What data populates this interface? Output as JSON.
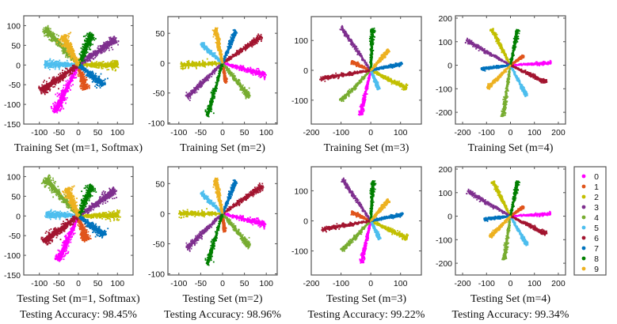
{
  "legend": {
    "entries": [
      {
        "label": "0",
        "color": "#ff00ff"
      },
      {
        "label": "1",
        "color": "#e0541b"
      },
      {
        "label": "2",
        "color": "#c2bf00"
      },
      {
        "label": "3",
        "color": "#7e2f8e"
      },
      {
        "label": "4",
        "color": "#77ac30"
      },
      {
        "label": "5",
        "color": "#4dbeee"
      },
      {
        "label": "6",
        "color": "#a2142f"
      },
      {
        "label": "7",
        "color": "#0072bd"
      },
      {
        "label": "8",
        "color": "#007f00"
      },
      {
        "label": "9",
        "color": "#edb120"
      }
    ]
  },
  "chart_data": [
    {
      "type": "scatter",
      "title": "Training Set (m=1, Softmax)",
      "accuracy_label": "",
      "xlim": [
        -140,
        140
      ],
      "ylim": [
        -150,
        125
      ],
      "xticks": [
        -100,
        -50,
        0,
        50,
        100
      ],
      "yticks": [
        -150,
        -100,
        -50,
        0,
        50,
        100
      ],
      "xtick_labels": [
        "-100",
        "-50",
        "0",
        "50",
        "100"
      ],
      "ytick_labels": [
        "-150",
        "-100",
        "-50",
        "0",
        "50",
        "100"
      ],
      "series": [
        {
          "name": "0",
          "tip": [
            -60,
            -120
          ],
          "spread": 12
        },
        {
          "name": "1",
          "tip": [
            18,
            -62
          ],
          "spread": 9
        },
        {
          "name": "2",
          "tip": [
            102,
            0
          ],
          "spread": 10
        },
        {
          "name": "3",
          "tip": [
            97,
            66
          ],
          "spread": 12
        },
        {
          "name": "4",
          "tip": [
            -86,
            94
          ],
          "spread": 12
        },
        {
          "name": "5",
          "tip": [
            -88,
            2
          ],
          "spread": 10
        },
        {
          "name": "6",
          "tip": [
            -97,
            -66
          ],
          "spread": 13
        },
        {
          "name": "7",
          "tip": [
            66,
            -52
          ],
          "spread": 10
        },
        {
          "name": "8",
          "tip": [
            35,
            80
          ],
          "spread": 11
        },
        {
          "name": "9",
          "tip": [
            -40,
            74
          ],
          "spread": 13
        }
      ]
    },
    {
      "type": "scatter",
      "title": "Training Set (m=2)",
      "accuracy_label": "",
      "xlim": [
        -125,
        125
      ],
      "ylim": [
        -102,
        78
      ],
      "xticks": [
        -100,
        -50,
        0,
        50,
        100
      ],
      "yticks": [
        -100,
        -50,
        0,
        50
      ],
      "xtick_labels": [
        "-100",
        "-50",
        "0",
        "50",
        "100"
      ],
      "ytick_labels": [
        "-100",
        "-50",
        "0",
        "50"
      ],
      "series": [
        {
          "name": "0",
          "tip": [
            98,
            -20
          ],
          "spread": 5
        },
        {
          "name": "1",
          "tip": [
            8,
            -33
          ],
          "spread": 3
        },
        {
          "name": "2",
          "tip": [
            -96,
            -3
          ],
          "spread": 5
        },
        {
          "name": "3",
          "tip": [
            -82,
            -58
          ],
          "spread": 5
        },
        {
          "name": "4",
          "tip": [
            62,
            -57
          ],
          "spread": 5
        },
        {
          "name": "5",
          "tip": [
            -50,
            33
          ],
          "spread": 4
        },
        {
          "name": "6",
          "tip": [
            90,
            45
          ],
          "spread": 5
        },
        {
          "name": "7",
          "tip": [
            30,
            54
          ],
          "spread": 4
        },
        {
          "name": "8",
          "tip": [
            -35,
            -88
          ],
          "spread": 5
        },
        {
          "name": "9",
          "tip": [
            -17,
            58
          ],
          "spread": 5
        }
      ]
    },
    {
      "type": "scatter",
      "title": "Training Set (m=3)",
      "accuracy_label": "",
      "xlim": [
        -200,
        170
      ],
      "ylim": [
        -180,
        180
      ],
      "xticks": [
        -200,
        -100,
        0,
        100
      ],
      "yticks": [
        -100,
        0,
        100
      ],
      "xtick_labels": [
        "-200",
        "-100",
        "0",
        "100"
      ],
      "ytick_labels": [
        "-100",
        "0",
        "100"
      ],
      "series": [
        {
          "name": "0",
          "tip": [
            -35,
            -150
          ],
          "spread": 6
        },
        {
          "name": "1",
          "tip": [
            -65,
            28
          ],
          "spread": 5
        },
        {
          "name": "2",
          "tip": [
            120,
            -60
          ],
          "spread": 8
        },
        {
          "name": "3",
          "tip": [
            -100,
            145
          ],
          "spread": 6
        },
        {
          "name": "4",
          "tip": [
            -100,
            -103
          ],
          "spread": 7
        },
        {
          "name": "5",
          "tip": [
            27,
            -63
          ],
          "spread": 5
        },
        {
          "name": "6",
          "tip": [
            -170,
            -28
          ],
          "spread": 7
        },
        {
          "name": "7",
          "tip": [
            105,
            22
          ],
          "spread": 6
        },
        {
          "name": "8",
          "tip": [
            5,
            140
          ],
          "spread": 6
        },
        {
          "name": "9",
          "tip": [
            60,
            68
          ],
          "spread": 6
        }
      ]
    },
    {
      "type": "scatter",
      "title": "Training Set (m=4)",
      "accuracy_label": "",
      "xlim": [
        -230,
        230
      ],
      "ylim": [
        -250,
        210
      ],
      "xticks": [
        -200,
        -100,
        0,
        100,
        200
      ],
      "yticks": [
        -200,
        -100,
        0,
        100,
        200
      ],
      "xtick_labels": [
        "-200",
        "-100",
        "0",
        "100",
        "200"
      ],
      "ytick_labels": [
        "-200",
        "-100",
        "0",
        "100",
        "200"
      ],
      "series": [
        {
          "name": "0",
          "tip": [
            170,
            10
          ],
          "spread": 6
        },
        {
          "name": "1",
          "tip": [
            55,
            40
          ],
          "spread": 5
        },
        {
          "name": "2",
          "tip": [
            -80,
            155
          ],
          "spread": 7
        },
        {
          "name": "3",
          "tip": [
            -185,
            105
          ],
          "spread": 8
        },
        {
          "name": "4",
          "tip": [
            -32,
            -218
          ],
          "spread": 7
        },
        {
          "name": "5",
          "tip": [
            68,
            -132
          ],
          "spread": 6
        },
        {
          "name": "6",
          "tip": [
            150,
            -73
          ],
          "spread": 8
        },
        {
          "name": "7",
          "tip": [
            -122,
            -15
          ],
          "spread": 7
        },
        {
          "name": "8",
          "tip": [
            30,
            150
          ],
          "spread": 7
        },
        {
          "name": "9",
          "tip": [
            -95,
            -98
          ],
          "spread": 7
        }
      ]
    },
    {
      "type": "scatter",
      "title": "Testing Set (m=1, Softmax)",
      "accuracy_label": "Testing Accuracy: 98.45%",
      "xlim": [
        -140,
        140
      ],
      "ylim": [
        -150,
        125
      ],
      "xticks": [
        -100,
        -50,
        0,
        50,
        100
      ],
      "yticks": [
        -150,
        -100,
        -50,
        0,
        50,
        100
      ],
      "xtick_labels": [
        "-100",
        "-50",
        "0",
        "50",
        "100"
      ],
      "ytick_labels": [
        "-150",
        "-100",
        "-50",
        "0",
        "50",
        "100"
      ],
      "series": [
        {
          "name": "0",
          "tip": [
            -52,
            -115
          ],
          "spread": 11
        },
        {
          "name": "1",
          "tip": [
            20,
            -62
          ],
          "spread": 9
        },
        {
          "name": "2",
          "tip": [
            105,
            2
          ],
          "spread": 10
        },
        {
          "name": "3",
          "tip": [
            95,
            65
          ],
          "spread": 12
        },
        {
          "name": "4",
          "tip": [
            -85,
            96
          ],
          "spread": 12
        },
        {
          "name": "5",
          "tip": [
            -85,
            4
          ],
          "spread": 9
        },
        {
          "name": "6",
          "tip": [
            -90,
            -66
          ],
          "spread": 13
        },
        {
          "name": "7",
          "tip": [
            67,
            -50
          ],
          "spread": 10
        },
        {
          "name": "8",
          "tip": [
            35,
            78
          ],
          "spread": 10
        },
        {
          "name": "9",
          "tip": [
            -30,
            70
          ],
          "spread": 12
        }
      ]
    },
    {
      "type": "scatter",
      "title": "Testing Set (m=2)",
      "accuracy_label": "Testing Accuracy: 98.96%",
      "xlim": [
        -125,
        125
      ],
      "ylim": [
        -102,
        78
      ],
      "xticks": [
        -100,
        -50,
        0,
        50,
        100
      ],
      "yticks": [
        -100,
        -50,
        0,
        50
      ],
      "xtick_labels": [
        "-100",
        "-50",
        "0",
        "50",
        "100"
      ],
      "ytick_labels": [
        "-100",
        "-50",
        "0",
        "50"
      ],
      "series": [
        {
          "name": "0",
          "tip": [
            97,
            -18
          ],
          "spread": 5
        },
        {
          "name": "1",
          "tip": [
            5,
            -30
          ],
          "spread": 3
        },
        {
          "name": "2",
          "tip": [
            -100,
            0
          ],
          "spread": 5
        },
        {
          "name": "3",
          "tip": [
            -82,
            -58
          ],
          "spread": 5
        },
        {
          "name": "4",
          "tip": [
            62,
            -55
          ],
          "spread": 5
        },
        {
          "name": "5",
          "tip": [
            -50,
            35
          ],
          "spread": 4
        },
        {
          "name": "6",
          "tip": [
            93,
            47
          ],
          "spread": 5
        },
        {
          "name": "7",
          "tip": [
            30,
            54
          ],
          "spread": 4
        },
        {
          "name": "8",
          "tip": [
            -35,
            -84
          ],
          "spread": 5
        },
        {
          "name": "9",
          "tip": [
            -17,
            58
          ],
          "spread": 5
        }
      ]
    },
    {
      "type": "scatter",
      "title": "Testing Set (m=3)",
      "accuracy_label": "Testing Accuracy: 99.22%",
      "xlim": [
        -200,
        170
      ],
      "ylim": [
        -180,
        180
      ],
      "xticks": [
        -200,
        -100,
        0,
        100
      ],
      "yticks": [
        -100,
        0,
        100
      ],
      "xtick_labels": [
        "-200",
        "-100",
        "0",
        "100"
      ],
      "ytick_labels": [
        "-100",
        "0",
        "100"
      ],
      "series": [
        {
          "name": "0",
          "tip": [
            -32,
            -140
          ],
          "spread": 6
        },
        {
          "name": "1",
          "tip": [
            -65,
            28
          ],
          "spread": 5
        },
        {
          "name": "2",
          "tip": [
            122,
            -58
          ],
          "spread": 8
        },
        {
          "name": "3",
          "tip": [
            -95,
            138
          ],
          "spread": 6
        },
        {
          "name": "4",
          "tip": [
            -97,
            -100
          ],
          "spread": 7
        },
        {
          "name": "5",
          "tip": [
            30,
            -60
          ],
          "spread": 5
        },
        {
          "name": "6",
          "tip": [
            -165,
            -28
          ],
          "spread": 7
        },
        {
          "name": "7",
          "tip": [
            108,
            22
          ],
          "spread": 6
        },
        {
          "name": "8",
          "tip": [
            7,
            132
          ],
          "spread": 6
        },
        {
          "name": "9",
          "tip": [
            60,
            70
          ],
          "spread": 6
        }
      ]
    },
    {
      "type": "scatter",
      "title": "Testing Set (m=4)",
      "accuracy_label": "Testing Accuracy: 99.34%",
      "xlim": [
        -230,
        230
      ],
      "ylim": [
        -250,
        210
      ],
      "xticks": [
        -200,
        -100,
        0,
        100,
        200
      ],
      "yticks": [
        -200,
        -100,
        0,
        100,
        200
      ],
      "xtick_labels": [
        "-200",
        "-100",
        "0",
        "100",
        "200"
      ],
      "ytick_labels": [
        "-200",
        "-100",
        "0",
        "100",
        "200"
      ],
      "series": [
        {
          "name": "0",
          "tip": [
            168,
            10
          ],
          "spread": 6
        },
        {
          "name": "1",
          "tip": [
            55,
            40
          ],
          "spread": 5
        },
        {
          "name": "2",
          "tip": [
            -75,
            148
          ],
          "spread": 7
        },
        {
          "name": "3",
          "tip": [
            -180,
            105
          ],
          "spread": 8
        },
        {
          "name": "4",
          "tip": [
            -27,
            -185
          ],
          "spread": 7
        },
        {
          "name": "5",
          "tip": [
            70,
            -125
          ],
          "spread": 6
        },
        {
          "name": "6",
          "tip": [
            150,
            -75
          ],
          "spread": 8
        },
        {
          "name": "7",
          "tip": [
            -110,
            -12
          ],
          "spread": 7
        },
        {
          "name": "8",
          "tip": [
            30,
            148
          ],
          "spread": 7
        },
        {
          "name": "9",
          "tip": [
            -85,
            -88
          ],
          "spread": 7
        }
      ]
    }
  ]
}
